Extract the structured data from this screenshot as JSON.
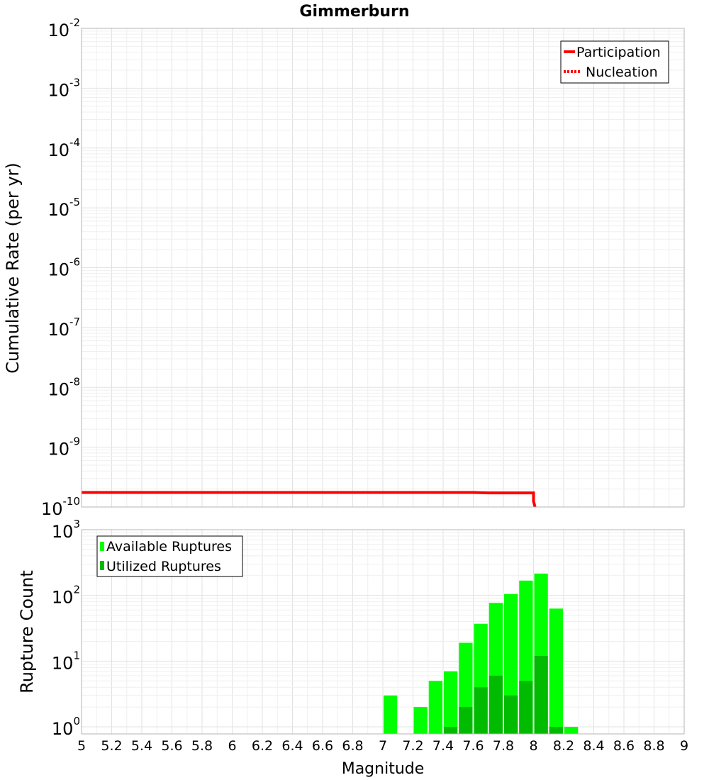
{
  "chart_data": [
    {
      "type": "line",
      "title": "Gimmerburn",
      "xlabel": "",
      "ylabel": "Cumulative Rate (per yr)",
      "xlim": [
        5,
        9
      ],
      "ylim_log10": [
        -10,
        -2
      ],
      "yscale": "log",
      "ytick_exponents": [
        "-2",
        "-3",
        "-4",
        "-5",
        "-6",
        "-7",
        "-8",
        "-9",
        "-10"
      ],
      "ytick_base": "10",
      "legend_position": "top-right",
      "legend": [
        "Participation",
        "Nucleation"
      ],
      "series": [
        {
          "name": "Participation",
          "color": "#ff0000",
          "style": "solid",
          "points": [
            [
              5.0,
              1.75e-10
            ],
            [
              7.6,
              1.75e-10
            ],
            [
              7.7,
              1.72e-10
            ],
            [
              8.0,
              1.72e-10
            ],
            [
              8.0,
              1.25e-10
            ],
            [
              8.01,
              1e-10
            ]
          ]
        },
        {
          "name": "Nucleation",
          "color": "#ff0000",
          "style": "dotted",
          "points": []
        }
      ]
    },
    {
      "type": "bar",
      "xlabel": "Magnitude",
      "ylabel": "Rupture Count",
      "xlim": [
        5,
        9
      ],
      "ylim": [
        0.78,
        1000
      ],
      "yscale": "log",
      "ytick_exponents": [
        "0",
        "1",
        "2",
        "3"
      ],
      "ytick_base": "10",
      "xticks": [
        "5",
        "5.2",
        "5.4",
        "5.6",
        "5.8",
        "6",
        "6.2",
        "6.4",
        "6.6",
        "6.8",
        "7",
        "7.2",
        "7.4",
        "7.6",
        "7.8",
        "8",
        "8.2",
        "8.4",
        "8.6",
        "8.8",
        "9"
      ],
      "bin_width": 0.1,
      "legend_position": "top-left",
      "legend": [
        "Available Ruptures",
        "Utilized Ruptures"
      ],
      "series": [
        {
          "name": "Available Ruptures",
          "color": "#00ff00",
          "x": [
            7.05,
            7.25,
            7.35,
            7.45,
            7.55,
            7.65,
            7.75,
            7.85,
            7.95,
            8.05,
            8.15,
            8.25
          ],
          "values": [
            3,
            2,
            5,
            7,
            19,
            37,
            77,
            105,
            168,
            215,
            63,
            1
          ]
        },
        {
          "name": "Utilized Ruptures",
          "color": "#00bb00",
          "x": [
            7.45,
            7.55,
            7.65,
            7.75,
            7.85,
            7.95,
            8.05,
            8.15
          ],
          "values": [
            1,
            2,
            4,
            6,
            3,
            5,
            12,
            1
          ]
        }
      ]
    }
  ]
}
